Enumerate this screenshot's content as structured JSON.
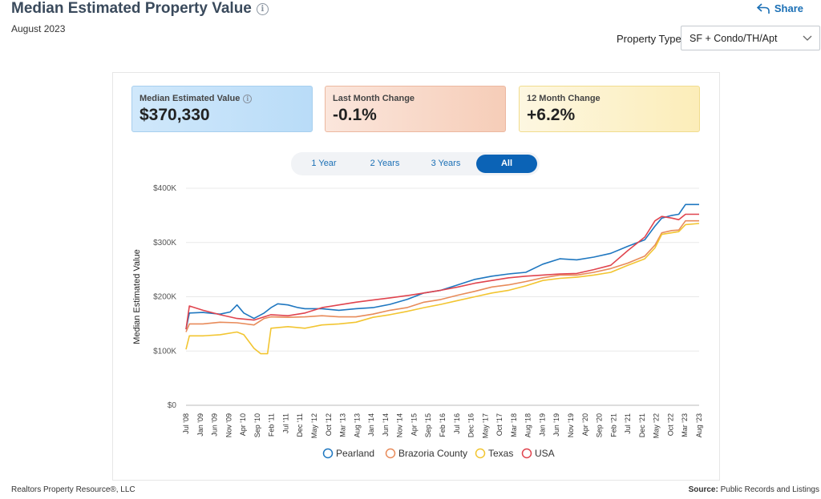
{
  "header": {
    "title": "Median Estimated Property Value",
    "date": "August 2023",
    "share_label": "Share",
    "property_type_label": "Property Type",
    "property_type_value": "SF + Condo/TH/Apt"
  },
  "stats": {
    "median": {
      "label": "Median Estimated Value",
      "value": "$370,330"
    },
    "last_month": {
      "label": "Last Month Change",
      "value": "-0.1%"
    },
    "twelve_month": {
      "label": "12 Month Change",
      "value": "+6.2%"
    }
  },
  "tabs": [
    "1 Year",
    "2 Years",
    "3 Years",
    "All"
  ],
  "footer": {
    "left": "Realtors Property Resource®, LLC",
    "source_label": "Source:",
    "source_value": "Public Records and Listings"
  },
  "colors": {
    "Pearland": "#1f77c0",
    "Brazoria County": "#e88b5a",
    "Texas": "#f2c531",
    "USA": "#e0444e"
  },
  "chart_data": {
    "type": "line",
    "title": "",
    "xlabel": "",
    "ylabel": "Median Estimated Value",
    "ylim": [
      0,
      400000
    ],
    "y_ticks": [
      "$0",
      "$100K",
      "$200K",
      "$300K",
      "$400K"
    ],
    "x_ticks": [
      "Jul '08",
      "Jan '09",
      "Jun '09",
      "Nov '09",
      "Apr '10",
      "Sep '10",
      "Feb '11",
      "Jul '11",
      "Dec '11",
      "May '12",
      "Oct '12",
      "Mar '13",
      "Aug '13",
      "Jan '14",
      "Jun '14",
      "Nov '14",
      "Apr '15",
      "Sep '15",
      "Feb '16",
      "Jul '16",
      "Dec '16",
      "May '17",
      "Oct '17",
      "Mar '18",
      "Aug '18",
      "Jan '19",
      "Jun '19",
      "Nov '19",
      "Apr '20",
      "Sep '20",
      "Feb '21",
      "Jul '21",
      "Dec '21",
      "May '22",
      "Oct '22",
      "Mar '23",
      "Aug '23"
    ],
    "x_start": "2008-07",
    "x_end": "2023-08",
    "series": [
      {
        "name": "Pearland",
        "points": [
          [
            2008.5,
            140000
          ],
          [
            2008.6,
            170000
          ],
          [
            2009.0,
            171000
          ],
          [
            2009.5,
            168000
          ],
          [
            2009.8,
            172000
          ],
          [
            2010.0,
            185000
          ],
          [
            2010.2,
            170000
          ],
          [
            2010.5,
            160000
          ],
          [
            2010.8,
            170000
          ],
          [
            2011.0,
            180000
          ],
          [
            2011.2,
            187000
          ],
          [
            2011.5,
            185000
          ],
          [
            2011.8,
            180000
          ],
          [
            2012.0,
            178000
          ],
          [
            2012.5,
            178000
          ],
          [
            2013.0,
            175000
          ],
          [
            2013.5,
            178000
          ],
          [
            2014.0,
            180000
          ],
          [
            2014.5,
            186000
          ],
          [
            2015.0,
            195000
          ],
          [
            2015.5,
            207000
          ],
          [
            2016.0,
            212000
          ],
          [
            2016.5,
            222000
          ],
          [
            2017.0,
            232000
          ],
          [
            2017.5,
            238000
          ],
          [
            2018.0,
            242000
          ],
          [
            2018.5,
            245000
          ],
          [
            2019.0,
            260000
          ],
          [
            2019.5,
            270000
          ],
          [
            2020.0,
            268000
          ],
          [
            2020.5,
            273000
          ],
          [
            2021.0,
            280000
          ],
          [
            2021.5,
            293000
          ],
          [
            2022.0,
            305000
          ],
          [
            2022.3,
            330000
          ],
          [
            2022.5,
            345000
          ],
          [
            2022.8,
            350000
          ],
          [
            2023.0,
            352000
          ],
          [
            2023.2,
            370000
          ],
          [
            2023.6,
            370000
          ]
        ]
      },
      {
        "name": "Brazoria County",
        "points": [
          [
            2008.5,
            135000
          ],
          [
            2008.6,
            150000
          ],
          [
            2009.0,
            150000
          ],
          [
            2009.5,
            153000
          ],
          [
            2010.0,
            152000
          ],
          [
            2010.5,
            148000
          ],
          [
            2010.8,
            160000
          ],
          [
            2011.0,
            163000
          ],
          [
            2011.5,
            162000
          ],
          [
            2012.0,
            163000
          ],
          [
            2012.5,
            165000
          ],
          [
            2013.0,
            163000
          ],
          [
            2013.5,
            163000
          ],
          [
            2014.0,
            168000
          ],
          [
            2014.5,
            175000
          ],
          [
            2015.0,
            180000
          ],
          [
            2015.5,
            190000
          ],
          [
            2016.0,
            195000
          ],
          [
            2016.5,
            203000
          ],
          [
            2017.0,
            210000
          ],
          [
            2017.5,
            218000
          ],
          [
            2018.0,
            222000
          ],
          [
            2018.5,
            228000
          ],
          [
            2019.0,
            235000
          ],
          [
            2019.5,
            240000
          ],
          [
            2020.0,
            240000
          ],
          [
            2020.5,
            245000
          ],
          [
            2021.0,
            252000
          ],
          [
            2021.5,
            262000
          ],
          [
            2022.0,
            275000
          ],
          [
            2022.3,
            295000
          ],
          [
            2022.5,
            318000
          ],
          [
            2022.8,
            322000
          ],
          [
            2023.0,
            323000
          ],
          [
            2023.2,
            340000
          ],
          [
            2023.6,
            340000
          ]
        ]
      },
      {
        "name": "Texas",
        "points": [
          [
            2008.5,
            103000
          ],
          [
            2008.6,
            128000
          ],
          [
            2009.0,
            128000
          ],
          [
            2009.5,
            130000
          ],
          [
            2010.0,
            135000
          ],
          [
            2010.2,
            130000
          ],
          [
            2010.5,
            105000
          ],
          [
            2010.7,
            95000
          ],
          [
            2010.9,
            95000
          ],
          [
            2011.0,
            142000
          ],
          [
            2011.5,
            145000
          ],
          [
            2012.0,
            142000
          ],
          [
            2012.5,
            148000
          ],
          [
            2013.0,
            150000
          ],
          [
            2013.5,
            153000
          ],
          [
            2014.0,
            162000
          ],
          [
            2014.5,
            167000
          ],
          [
            2015.0,
            173000
          ],
          [
            2015.5,
            180000
          ],
          [
            2016.0,
            186000
          ],
          [
            2016.5,
            193000
          ],
          [
            2017.0,
            200000
          ],
          [
            2017.5,
            207000
          ],
          [
            2018.0,
            212000
          ],
          [
            2018.5,
            220000
          ],
          [
            2019.0,
            230000
          ],
          [
            2019.5,
            234000
          ],
          [
            2020.0,
            236000
          ],
          [
            2020.5,
            240000
          ],
          [
            2021.0,
            245000
          ],
          [
            2021.5,
            258000
          ],
          [
            2022.0,
            270000
          ],
          [
            2022.3,
            290000
          ],
          [
            2022.5,
            315000
          ],
          [
            2022.8,
            318000
          ],
          [
            2023.0,
            320000
          ],
          [
            2023.2,
            333000
          ],
          [
            2023.6,
            335000
          ]
        ]
      },
      {
        "name": "USA",
        "points": [
          [
            2008.5,
            140000
          ],
          [
            2008.6,
            183000
          ],
          [
            2009.0,
            175000
          ],
          [
            2009.5,
            167000
          ],
          [
            2010.0,
            160000
          ],
          [
            2010.5,
            157000
          ],
          [
            2011.0,
            167000
          ],
          [
            2011.5,
            165000
          ],
          [
            2012.0,
            170000
          ],
          [
            2012.5,
            180000
          ],
          [
            2013.0,
            185000
          ],
          [
            2013.5,
            190000
          ],
          [
            2014.0,
            194000
          ],
          [
            2014.5,
            198000
          ],
          [
            2015.0,
            202000
          ],
          [
            2015.5,
            207000
          ],
          [
            2016.0,
            212000
          ],
          [
            2016.5,
            218000
          ],
          [
            2017.0,
            225000
          ],
          [
            2017.5,
            230000
          ],
          [
            2018.0,
            235000
          ],
          [
            2018.5,
            238000
          ],
          [
            2019.0,
            240000
          ],
          [
            2019.5,
            242000
          ],
          [
            2020.0,
            243000
          ],
          [
            2020.5,
            250000
          ],
          [
            2021.0,
            258000
          ],
          [
            2021.5,
            285000
          ],
          [
            2022.0,
            310000
          ],
          [
            2022.3,
            340000
          ],
          [
            2022.5,
            348000
          ],
          [
            2022.8,
            345000
          ],
          [
            2023.0,
            342000
          ],
          [
            2023.2,
            352000
          ],
          [
            2023.6,
            352000
          ]
        ]
      }
    ],
    "legend": [
      "Pearland",
      "Brazoria County",
      "Texas",
      "USA"
    ]
  }
}
